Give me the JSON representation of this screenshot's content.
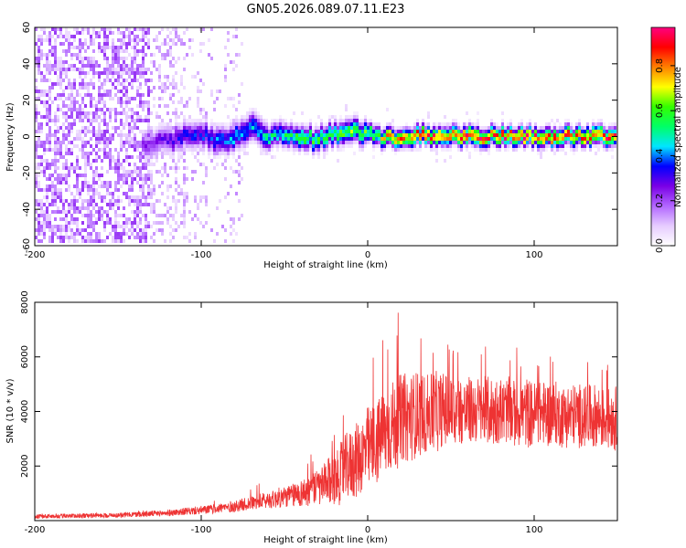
{
  "title": "GN05.2026.089.07.11.E23",
  "chart_data": [
    {
      "type": "heatmap",
      "name": "spectrogram",
      "xlabel": "Height of straight line (km)",
      "ylabel": "Frequency (Hz)",
      "xlim": [
        -200,
        150
      ],
      "ylim": [
        -60,
        60
      ],
      "xticks": [
        -200,
        -100,
        0,
        100
      ],
      "yticks": [
        -60,
        -40,
        -20,
        0,
        20,
        40,
        60
      ],
      "colorbar": {
        "label": "Normalized spectral amplitude",
        "range": [
          0.0,
          0.97
        ],
        "ticks": [
          0.0,
          0.2,
          0.4,
          0.6,
          0.8
        ],
        "tick_labels": [
          "0.0",
          "0.2",
          "0.4",
          "0.6",
          "0.8"
        ],
        "colormap": [
          "#ffffff",
          "#e6ccff",
          "#b266ff",
          "#7a00e6",
          "#0000ff",
          "#00e6ff",
          "#00ff66",
          "#33ff00",
          "#ffff00",
          "#ff8000",
          "#ff0000",
          "#ff0080"
        ]
      },
      "ridge": {
        "x": [
          -130,
          -120,
          -110,
          -100,
          -90,
          -80,
          -70,
          -60,
          -50,
          -40,
          -30,
          -20,
          -10,
          0,
          10,
          20,
          30,
          40,
          50,
          60,
          70,
          80,
          90,
          100,
          110,
          120,
          130,
          140,
          150
        ],
        "frequency": [
          -4,
          -2,
          0,
          2,
          -3,
          0,
          5,
          -2,
          2,
          0,
          -2,
          2,
          3,
          2,
          -1,
          0,
          1,
          0,
          0,
          0,
          0,
          0,
          0,
          0,
          0,
          0,
          0,
          0,
          0
        ],
        "amplitude": [
          0.25,
          0.3,
          0.35,
          0.35,
          0.4,
          0.45,
          0.45,
          0.5,
          0.55,
          0.6,
          0.6,
          0.6,
          0.65,
          0.65,
          0.75,
          0.85,
          0.88,
          0.9,
          0.92,
          0.92,
          0.92,
          0.9,
          0.9,
          0.9,
          0.88,
          0.88,
          0.88,
          0.88,
          0.88
        ]
      },
      "noise_extent_km": [
        -200,
        -75
      ]
    },
    {
      "type": "line",
      "name": "snr",
      "xlabel": "Height of straight line (km)",
      "ylabel": "SNR (10 * v/v)",
      "xlim": [
        -200,
        150
      ],
      "ylim": [
        0,
        8000
      ],
      "xticks": [
        -200,
        -100,
        0,
        100
      ],
      "yticks": [
        2000,
        4000,
        6000,
        8000
      ],
      "color": "#ee3333",
      "envelope": {
        "x": [
          -200,
          -150,
          -120,
          -100,
          -80,
          -60,
          -40,
          -30,
          -20,
          -10,
          0,
          10,
          20,
          30,
          40,
          60,
          80,
          100,
          120,
          140,
          150
        ],
        "mean": [
          150,
          200,
          280,
          380,
          520,
          750,
          1000,
          1200,
          1500,
          2100,
          2600,
          3200,
          3700,
          3900,
          4000,
          4000,
          4000,
          3950,
          3850,
          3800,
          3750
        ],
        "spread": [
          80,
          90,
          120,
          160,
          220,
          320,
          500,
          700,
          1000,
          1400,
          1600,
          1700,
          1700,
          1600,
          1500,
          1300,
          1300,
          1300,
          1200,
          1200,
          1200
        ],
        "peak": [
          250,
          300,
          500,
          700,
          1000,
          1500,
          2200,
          2600,
          3300,
          5000,
          6300,
          6700,
          8000,
          7000,
          6800,
          6500,
          6500,
          6200,
          6000,
          6100,
          5400
        ]
      }
    }
  ]
}
